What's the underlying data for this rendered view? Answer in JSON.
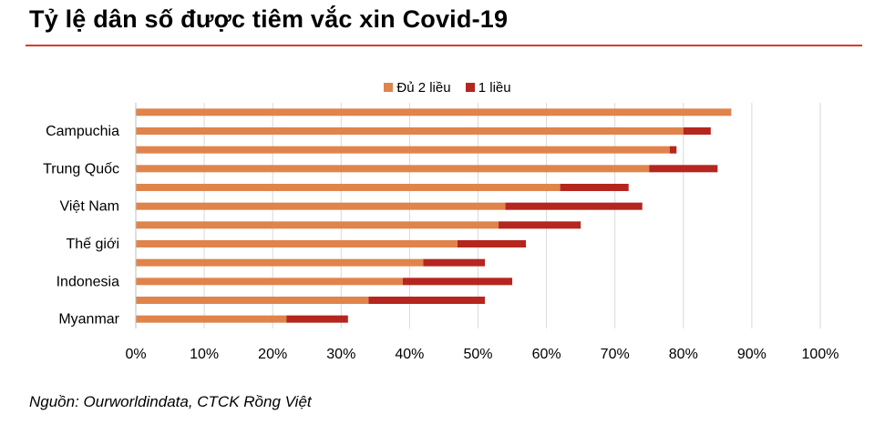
{
  "header": {
    "title": "Tỷ lệ dân số được tiêm vắc xin Covid-19"
  },
  "chart_data": {
    "type": "bar",
    "orientation": "horizontal",
    "stacked": true,
    "category_labels_shown": [
      "Campuchia",
      "",
      "Trung Quốc",
      "",
      "Việt Nam",
      "",
      "Thế giới",
      "",
      "Indonesia",
      "",
      "Myanmar"
    ],
    "categories": [
      "",
      "Campuchia",
      "",
      "Trung Quốc",
      "",
      "Việt Nam",
      "",
      "Thế giới",
      "",
      "Indonesia",
      "",
      "Myanmar"
    ],
    "series": [
      {
        "name": "Đủ 2 liều",
        "color": "#e0844b",
        "values": [
          87,
          80,
          78,
          75,
          62,
          54,
          53,
          47,
          42,
          39,
          34,
          22
        ]
      },
      {
        "name": "1 liều",
        "color": "#b5261f",
        "values": [
          0,
          4,
          1,
          10,
          10,
          20,
          12,
          10,
          9,
          16,
          17,
          9
        ]
      }
    ],
    "xlim": [
      0,
      100
    ],
    "xticks": [
      "0%",
      "10%",
      "20%",
      "30%",
      "40%",
      "50%",
      "60%",
      "70%",
      "80%",
      "90%",
      "100%"
    ],
    "grid": "vertical",
    "legend_position": "top"
  },
  "footer": {
    "source": "Nguồn: Ourworldindata, CTCK Rồng Việt"
  }
}
